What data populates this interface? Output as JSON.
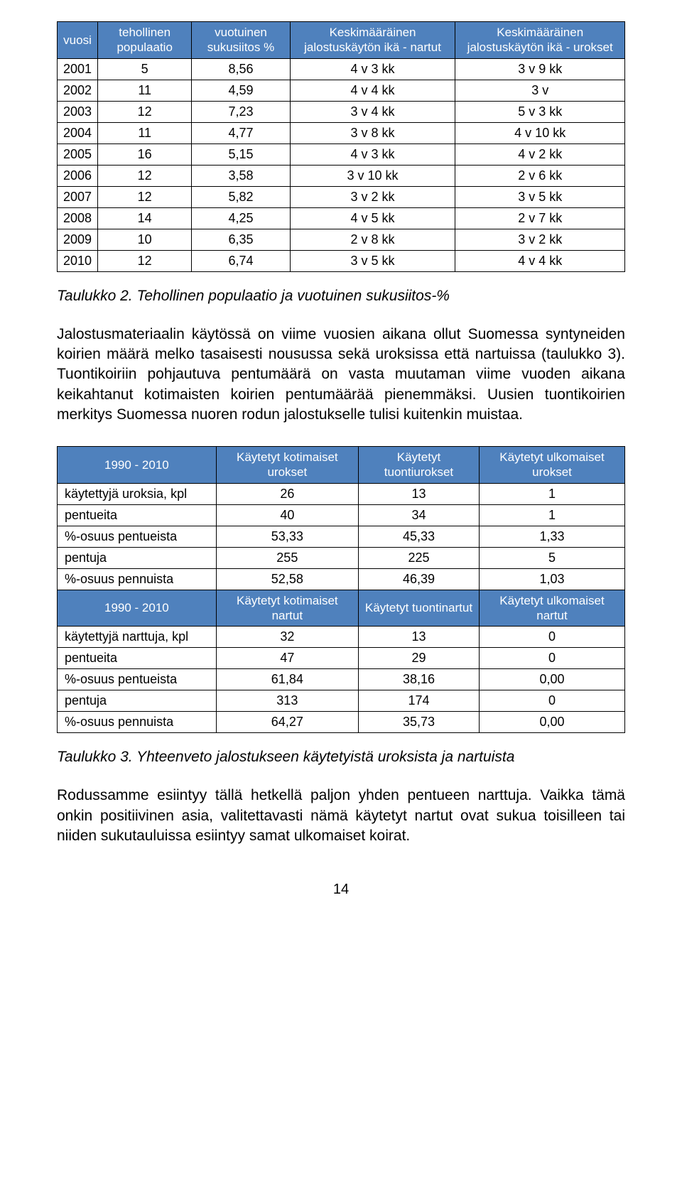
{
  "table1": {
    "headers": [
      "vuosi",
      "tehollinen populaatio",
      "vuotuinen sukusiitos %",
      "Keskimääräinen jalostuskäytön ikä - nartut",
      "Keskimääräinen jalostuskäytön ikä - urokset"
    ],
    "rows": [
      [
        "2001",
        "5",
        "8,56",
        "4 v 3 kk",
        "3 v 9 kk"
      ],
      [
        "2002",
        "11",
        "4,59",
        "4 v 4 kk",
        "3 v"
      ],
      [
        "2003",
        "12",
        "7,23",
        "3 v 4 kk",
        "5 v 3 kk"
      ],
      [
        "2004",
        "11",
        "4,77",
        "3 v 8 kk",
        "4 v 10 kk"
      ],
      [
        "2005",
        "16",
        "5,15",
        "4 v 3 kk",
        "4 v 2 kk"
      ],
      [
        "2006",
        "12",
        "3,58",
        "3 v 10 kk",
        "2 v 6 kk"
      ],
      [
        "2007",
        "12",
        "5,82",
        "3 v 2 kk",
        "3 v 5 kk"
      ],
      [
        "2008",
        "14",
        "4,25",
        "4 v 5 kk",
        "2 v 7 kk"
      ],
      [
        "2009",
        "10",
        "6,35",
        "2 v 8 kk",
        "3 v 2 kk"
      ],
      [
        "2010",
        "12",
        "6,74",
        "3 v 5 kk",
        "4 v 4 kk"
      ]
    ]
  },
  "caption1": "Taulukko 2. Tehollinen populaatio ja vuotuinen sukusiitos-%",
  "para1": "Jalostusmateriaalin käytössä on viime vuosien aikana ollut Suomessa syntyneiden koirien määrä melko tasaisesti nousussa sekä uroksissa että nartuissa (taulukko 3). Tuontikoiriin pohjautuva pentumäärä on vasta muutaman viime vuoden aikana keikahtanut kotimaisten koirien pentumäärää pienemmäksi. Uusien tuontikoirien merkitys Suomessa nuoren rodun jalostukselle tulisi kuitenkin muistaa.",
  "table2": {
    "header1": [
      "1990 - 2010",
      "Käytetyt kotimaiset urokset",
      "Käytetyt tuontiurokset",
      "Käytetyt ulkomaiset urokset"
    ],
    "rows1": [
      [
        "käytettyjä uroksia, kpl",
        "26",
        "13",
        "1"
      ],
      [
        "pentueita",
        "40",
        "34",
        "1"
      ],
      [
        "%-osuus pentueista",
        "53,33",
        "45,33",
        "1,33"
      ],
      [
        "pentuja",
        "255",
        "225",
        "5"
      ],
      [
        "%-osuus pennuista",
        "52,58",
        "46,39",
        "1,03"
      ]
    ],
    "header2": [
      "1990 - 2010",
      "Käytetyt kotimaiset nartut",
      "Käytetyt tuontinartut",
      "Käytetyt ulkomaiset nartut"
    ],
    "rows2": [
      [
        "käytettyjä narttuja, kpl",
        "32",
        "13",
        "0"
      ],
      [
        "pentueita",
        "47",
        "29",
        "0"
      ],
      [
        "%-osuus pentueista",
        "61,84",
        "38,16",
        "0,00"
      ],
      [
        "pentuja",
        "313",
        "174",
        "0"
      ],
      [
        "%-osuus pennuista",
        "64,27",
        "35,73",
        "0,00"
      ]
    ]
  },
  "caption2": "Taulukko 3. Yhteenveto jalostukseen käytetyistä uroksista ja nartuista",
  "para2": "Rodussamme esiintyy tällä hetkellä paljon yhden pentueen narttuja. Vaikka tämä onkin positiivinen asia, valitettavasti nämä käytetyt nartut ovat sukua toisilleen tai niiden sukutauluissa esiintyy samat ulkomaiset koirat.",
  "page_number": "14",
  "colors": {
    "header_bg": "#4f81bd",
    "header_text": "#ffffff",
    "border": "#000000",
    "body_text": "#000000",
    "background": "#ffffff"
  }
}
